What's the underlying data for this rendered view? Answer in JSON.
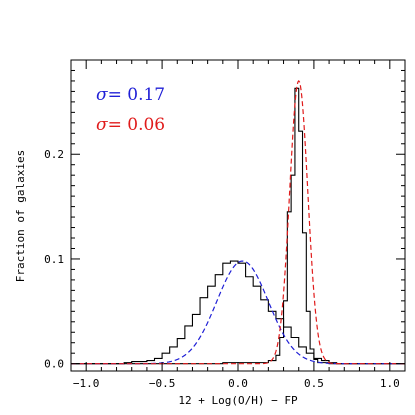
{
  "chart_data": {
    "type": "line",
    "xlabel": "12 + Log(O/H)  −  FP",
    "ylabel": "Fraction of galaxies",
    "xlim": [
      -1.1,
      1.1
    ],
    "ylim": [
      -0.007,
      0.29
    ],
    "x_ticks": [
      "−1.0",
      "−0.5",
      "0.0",
      "0.5",
      "1.0"
    ],
    "x_tick_values": [
      -1.0,
      -0.5,
      0.0,
      0.5,
      1.0
    ],
    "y_ticks": [
      "0.0",
      "0.1",
      "0.2"
    ],
    "y_tick_values": [
      0.0,
      0.1,
      0.2
    ],
    "annotations": [
      {
        "symbol": "σ",
        "text": "=  0.17",
        "color": "#1f1fd6"
      },
      {
        "symbol": "σ",
        "text": "=  0.06",
        "color": "#e01b1b"
      }
    ],
    "series": [
      {
        "kind": "histogram",
        "color": "#000000",
        "bin_width": 0.05,
        "bin_edges": [
          -1.1,
          -0.75,
          -0.7,
          -0.65,
          -0.6,
          -0.55,
          -0.5,
          -0.45,
          -0.4,
          -0.35,
          -0.3,
          -0.25,
          -0.2,
          -0.15,
          -0.1,
          -0.05,
          0.0,
          0.05,
          0.1,
          0.15,
          0.2,
          0.25,
          0.3,
          0.35,
          0.4,
          0.45,
          0.5,
          0.55,
          0.6,
          0.65,
          1.1
        ],
        "values": [
          0.0,
          0.001,
          0.002,
          0.002,
          0.003,
          0.005,
          0.01,
          0.016,
          0.024,
          0.036,
          0.047,
          0.063,
          0.074,
          0.085,
          0.096,
          0.098,
          0.096,
          0.083,
          0.074,
          0.061,
          0.05,
          0.043,
          0.035,
          0.025,
          0.016,
          0.01,
          0.005,
          0.003,
          0.001,
          0.0
        ]
      },
      {
        "kind": "histogram",
        "color": "#000000",
        "bin_width": 0.025,
        "bin_edges": [
          -1.1,
          -0.1,
          0.2,
          0.25,
          0.275,
          0.3,
          0.325,
          0.35,
          0.375,
          0.4,
          0.425,
          0.45,
          0.475,
          0.5,
          0.525,
          0.6,
          1.1
        ],
        "values": [
          0.0,
          0.001,
          0.003,
          0.008,
          0.025,
          0.06,
          0.145,
          0.18,
          0.263,
          0.222,
          0.125,
          0.05,
          0.014,
          0.004,
          0.001,
          0.0
        ]
      },
      {
        "kind": "gaussian",
        "style": "dashed",
        "color": "#1f1fd6",
        "amplitude": 0.098,
        "mean": 0.03,
        "sigma": 0.17
      },
      {
        "kind": "gaussian",
        "style": "dashed",
        "color": "#e01b1b",
        "amplitude": 0.27,
        "mean": 0.4,
        "sigma": 0.06
      }
    ]
  }
}
